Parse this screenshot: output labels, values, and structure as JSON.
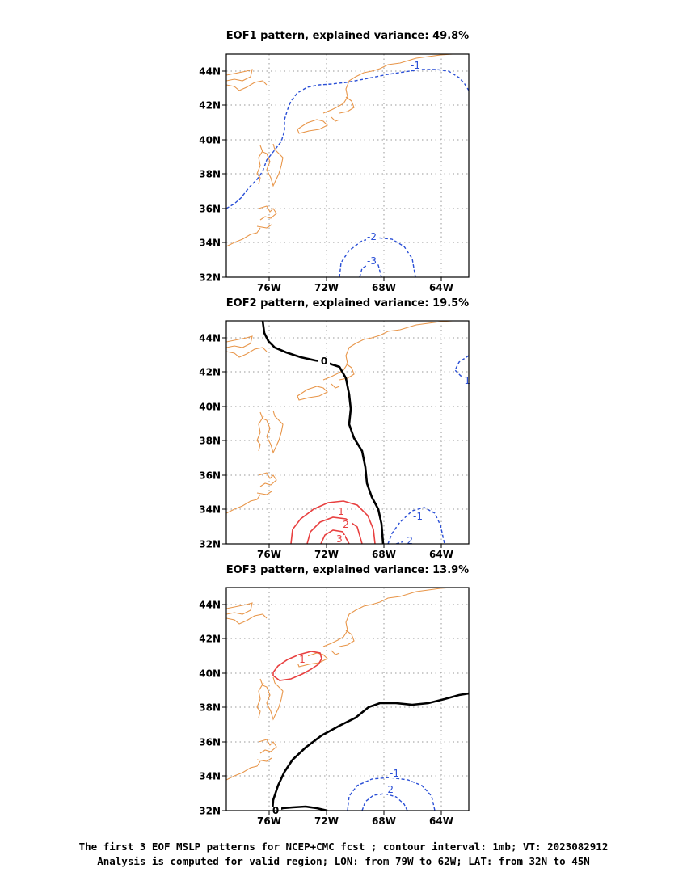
{
  "panels": [
    {
      "title": "EOF1 pattern, explained variance: 49.8%"
    },
    {
      "title": "EOF2 pattern, explained variance: 19.5%"
    },
    {
      "title": "EOF3 pattern, explained variance: 13.9%"
    }
  ],
  "axes": {
    "lat_ticks": [
      "32N",
      "34N",
      "36N",
      "38N",
      "40N",
      "42N",
      "44N"
    ],
    "lon_ticks": [
      "76W",
      "72W",
      "68W",
      "64W"
    ]
  },
  "contour_labels": {
    "eof1": [
      "-1",
      "-2",
      "-3"
    ],
    "eof2": [
      "0",
      "1",
      "2",
      "3",
      "-1",
      "-1",
      "-2"
    ],
    "eof3": [
      "1",
      "-1",
      "-2",
      "0"
    ]
  },
  "colors": {
    "coastline": "#e8964a",
    "negative_contour": "#2a4fd6",
    "positive_contour": "#e84040",
    "zero_contour": "#000000",
    "grid": "#999999"
  },
  "caption": {
    "line1": "The first 3 EOF MSLP patterns for NCEP+CMC fcst ; contour interval: 1mb; VT: 2023082912",
    "line2": "Analysis is computed for valid region; LON: from 79W to 62W; LAT: from 32N to 45N"
  }
}
